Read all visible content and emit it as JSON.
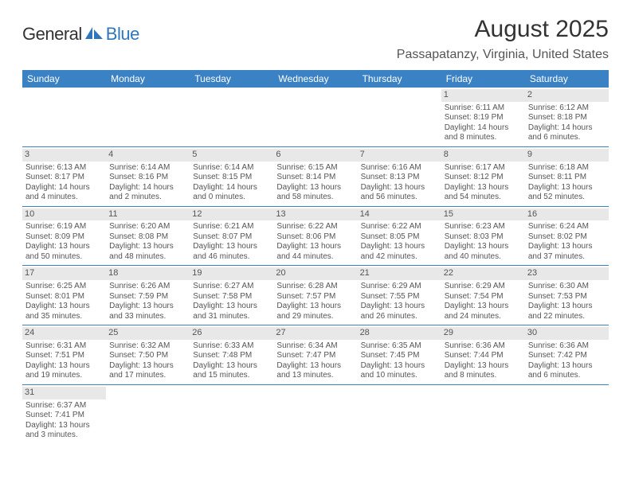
{
  "logo": {
    "general": "General",
    "blue": "Blue"
  },
  "title": "August 2025",
  "location": "Passapatanzy, Virginia, United States",
  "day_headers": [
    "Sunday",
    "Monday",
    "Tuesday",
    "Wednesday",
    "Thursday",
    "Friday",
    "Saturday"
  ],
  "header_bg": "#3b82c4",
  "header_fg": "#ffffff",
  "daynum_bg": "#e8e8e8",
  "weeks": [
    [
      null,
      null,
      null,
      null,
      null,
      {
        "n": "1",
        "sunrise": "Sunrise: 6:11 AM",
        "sunset": "Sunset: 8:19 PM",
        "daylight": "Daylight: 14 hours and 8 minutes."
      },
      {
        "n": "2",
        "sunrise": "Sunrise: 6:12 AM",
        "sunset": "Sunset: 8:18 PM",
        "daylight": "Daylight: 14 hours and 6 minutes."
      }
    ],
    [
      {
        "n": "3",
        "sunrise": "Sunrise: 6:13 AM",
        "sunset": "Sunset: 8:17 PM",
        "daylight": "Daylight: 14 hours and 4 minutes."
      },
      {
        "n": "4",
        "sunrise": "Sunrise: 6:14 AM",
        "sunset": "Sunset: 8:16 PM",
        "daylight": "Daylight: 14 hours and 2 minutes."
      },
      {
        "n": "5",
        "sunrise": "Sunrise: 6:14 AM",
        "sunset": "Sunset: 8:15 PM",
        "daylight": "Daylight: 14 hours and 0 minutes."
      },
      {
        "n": "6",
        "sunrise": "Sunrise: 6:15 AM",
        "sunset": "Sunset: 8:14 PM",
        "daylight": "Daylight: 13 hours and 58 minutes."
      },
      {
        "n": "7",
        "sunrise": "Sunrise: 6:16 AM",
        "sunset": "Sunset: 8:13 PM",
        "daylight": "Daylight: 13 hours and 56 minutes."
      },
      {
        "n": "8",
        "sunrise": "Sunrise: 6:17 AM",
        "sunset": "Sunset: 8:12 PM",
        "daylight": "Daylight: 13 hours and 54 minutes."
      },
      {
        "n": "9",
        "sunrise": "Sunrise: 6:18 AM",
        "sunset": "Sunset: 8:11 PM",
        "daylight": "Daylight: 13 hours and 52 minutes."
      }
    ],
    [
      {
        "n": "10",
        "sunrise": "Sunrise: 6:19 AM",
        "sunset": "Sunset: 8:09 PM",
        "daylight": "Daylight: 13 hours and 50 minutes."
      },
      {
        "n": "11",
        "sunrise": "Sunrise: 6:20 AM",
        "sunset": "Sunset: 8:08 PM",
        "daylight": "Daylight: 13 hours and 48 minutes."
      },
      {
        "n": "12",
        "sunrise": "Sunrise: 6:21 AM",
        "sunset": "Sunset: 8:07 PM",
        "daylight": "Daylight: 13 hours and 46 minutes."
      },
      {
        "n": "13",
        "sunrise": "Sunrise: 6:22 AM",
        "sunset": "Sunset: 8:06 PM",
        "daylight": "Daylight: 13 hours and 44 minutes."
      },
      {
        "n": "14",
        "sunrise": "Sunrise: 6:22 AM",
        "sunset": "Sunset: 8:05 PM",
        "daylight": "Daylight: 13 hours and 42 minutes."
      },
      {
        "n": "15",
        "sunrise": "Sunrise: 6:23 AM",
        "sunset": "Sunset: 8:03 PM",
        "daylight": "Daylight: 13 hours and 40 minutes."
      },
      {
        "n": "16",
        "sunrise": "Sunrise: 6:24 AM",
        "sunset": "Sunset: 8:02 PM",
        "daylight": "Daylight: 13 hours and 37 minutes."
      }
    ],
    [
      {
        "n": "17",
        "sunrise": "Sunrise: 6:25 AM",
        "sunset": "Sunset: 8:01 PM",
        "daylight": "Daylight: 13 hours and 35 minutes."
      },
      {
        "n": "18",
        "sunrise": "Sunrise: 6:26 AM",
        "sunset": "Sunset: 7:59 PM",
        "daylight": "Daylight: 13 hours and 33 minutes."
      },
      {
        "n": "19",
        "sunrise": "Sunrise: 6:27 AM",
        "sunset": "Sunset: 7:58 PM",
        "daylight": "Daylight: 13 hours and 31 minutes."
      },
      {
        "n": "20",
        "sunrise": "Sunrise: 6:28 AM",
        "sunset": "Sunset: 7:57 PM",
        "daylight": "Daylight: 13 hours and 29 minutes."
      },
      {
        "n": "21",
        "sunrise": "Sunrise: 6:29 AM",
        "sunset": "Sunset: 7:55 PM",
        "daylight": "Daylight: 13 hours and 26 minutes."
      },
      {
        "n": "22",
        "sunrise": "Sunrise: 6:29 AM",
        "sunset": "Sunset: 7:54 PM",
        "daylight": "Daylight: 13 hours and 24 minutes."
      },
      {
        "n": "23",
        "sunrise": "Sunrise: 6:30 AM",
        "sunset": "Sunset: 7:53 PM",
        "daylight": "Daylight: 13 hours and 22 minutes."
      }
    ],
    [
      {
        "n": "24",
        "sunrise": "Sunrise: 6:31 AM",
        "sunset": "Sunset: 7:51 PM",
        "daylight": "Daylight: 13 hours and 19 minutes."
      },
      {
        "n": "25",
        "sunrise": "Sunrise: 6:32 AM",
        "sunset": "Sunset: 7:50 PM",
        "daylight": "Daylight: 13 hours and 17 minutes."
      },
      {
        "n": "26",
        "sunrise": "Sunrise: 6:33 AM",
        "sunset": "Sunset: 7:48 PM",
        "daylight": "Daylight: 13 hours and 15 minutes."
      },
      {
        "n": "27",
        "sunrise": "Sunrise: 6:34 AM",
        "sunset": "Sunset: 7:47 PM",
        "daylight": "Daylight: 13 hours and 13 minutes."
      },
      {
        "n": "28",
        "sunrise": "Sunrise: 6:35 AM",
        "sunset": "Sunset: 7:45 PM",
        "daylight": "Daylight: 13 hours and 10 minutes."
      },
      {
        "n": "29",
        "sunrise": "Sunrise: 6:36 AM",
        "sunset": "Sunset: 7:44 PM",
        "daylight": "Daylight: 13 hours and 8 minutes."
      },
      {
        "n": "30",
        "sunrise": "Sunrise: 6:36 AM",
        "sunset": "Sunset: 7:42 PM",
        "daylight": "Daylight: 13 hours and 6 minutes."
      }
    ],
    [
      {
        "n": "31",
        "sunrise": "Sunrise: 6:37 AM",
        "sunset": "Sunset: 7:41 PM",
        "daylight": "Daylight: 13 hours and 3 minutes."
      },
      null,
      null,
      null,
      null,
      null,
      null
    ]
  ]
}
